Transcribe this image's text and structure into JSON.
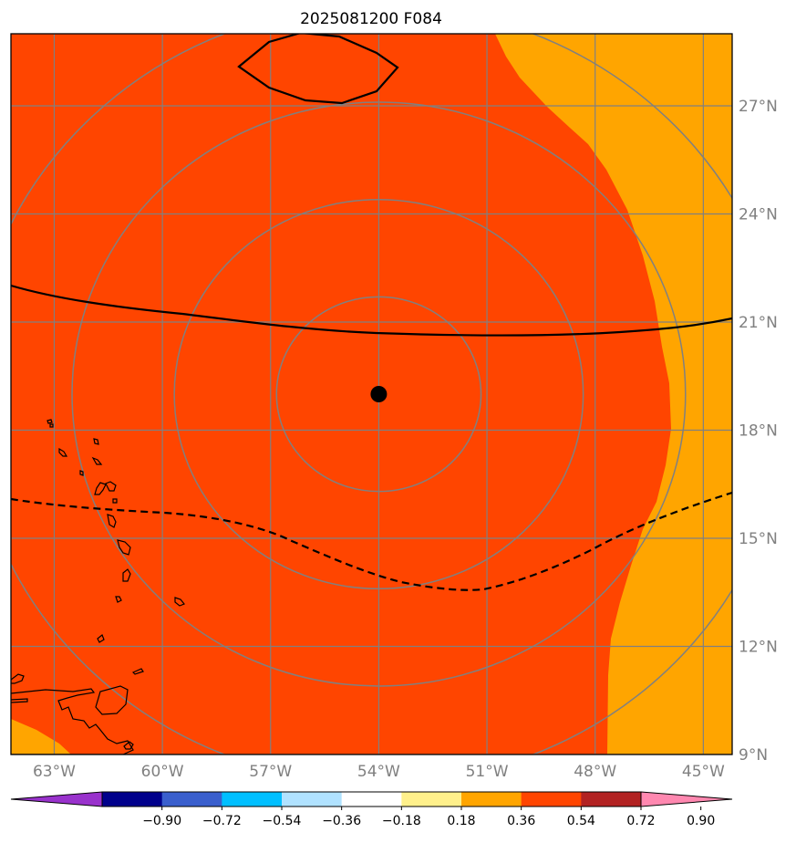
{
  "title": "2025081200 F084",
  "map": {
    "lon_range": [
      -64.2,
      -44.2
    ],
    "lat_range": [
      9.0,
      29.0
    ],
    "lon_ticks": [
      {
        "value": -63,
        "label": "63°W"
      },
      {
        "value": -60,
        "label": "60°W"
      },
      {
        "value": -57,
        "label": "57°W"
      },
      {
        "value": -54,
        "label": "54°W"
      },
      {
        "value": -51,
        "label": "51°W"
      },
      {
        "value": -48,
        "label": "48°W"
      },
      {
        "value": -45,
        "label": "45°W"
      }
    ],
    "lat_ticks": [
      {
        "value": 9,
        "label": "9°N"
      },
      {
        "value": 12,
        "label": "12°N"
      },
      {
        "value": 15,
        "label": "15°N"
      },
      {
        "value": 18,
        "label": "18°N"
      },
      {
        "value": 21,
        "label": "21°N"
      },
      {
        "value": 24,
        "label": "24°N"
      },
      {
        "value": 27,
        "label": "27°N"
      }
    ],
    "center_point": {
      "lon": -54.0,
      "lat": 19.0
    },
    "range_rings_deg": [
      2.7,
      5.4,
      8.1,
      10.8
    ],
    "colors": {
      "field_main": "#ff4500",
      "field_outer": "#ffa500",
      "grid": "#808080",
      "contour": "#000000"
    }
  },
  "colorbar": {
    "colors": [
      "#9932cc",
      "#00008b",
      "#3a5fcd",
      "#00bfff",
      "#b0e2ff",
      "#ffffff",
      "#fff08b",
      "#ffa500",
      "#ff4500",
      "#b22222",
      "#ff88b0"
    ],
    "ticks": [
      "−0.90",
      "−0.72",
      "−0.54",
      "−0.36",
      "−0.18",
      "0.18",
      "0.36",
      "0.54",
      "0.72",
      "0.90"
    ]
  }
}
